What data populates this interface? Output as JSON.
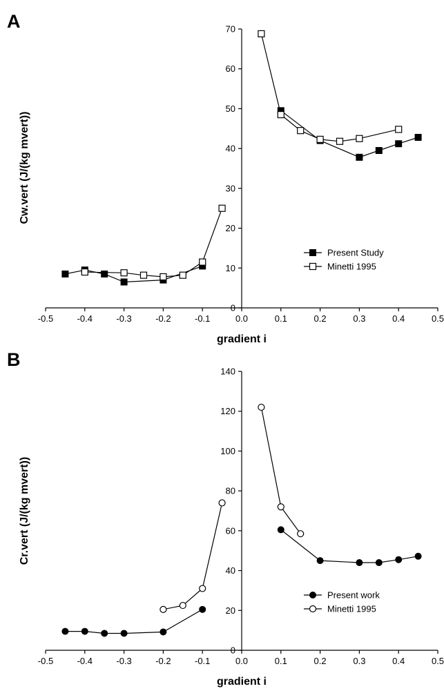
{
  "chart_data": [
    {
      "panel": "A",
      "type": "line",
      "xlabel": "gradient i",
      "ylabel": "Cw.vert (J/(kg mvert))",
      "xlim": [
        -0.5,
        0.5
      ],
      "ylim": [
        0,
        70
      ],
      "xticks": [
        -0.5,
        -0.4,
        -0.3,
        -0.2,
        -0.1,
        0.0,
        0.1,
        0.2,
        0.3,
        0.4,
        0.5
      ],
      "xtick_labels": [
        "-0.5",
        "-0.4",
        "-0.3",
        "-0.2",
        "-0.1",
        "0.0",
        "0.1",
        "0.2",
        "0.3",
        "0.4",
        "0.5"
      ],
      "yticks": [
        0,
        10,
        20,
        30,
        40,
        50,
        60,
        70
      ],
      "ytick_labels": [
        "0",
        "10",
        "20",
        "30",
        "40",
        "50",
        "60",
        "70"
      ],
      "grid": false,
      "legend_position": "bottom-right",
      "series": [
        {
          "name": "Present Study",
          "marker": "filled-square",
          "segments": [
            {
              "x": [
                -0.45,
                -0.4,
                -0.35,
                -0.3,
                -0.2,
                -0.1
              ],
              "y": [
                8.5,
                9.5,
                8.5,
                6.5,
                7.0,
                10.5
              ]
            },
            {
              "x": [
                0.1,
                0.2,
                0.3,
                0.35,
                0.4,
                0.45
              ],
              "y": [
                49.5,
                42.0,
                37.8,
                39.5,
                41.2,
                42.8
              ]
            }
          ]
        },
        {
          "name": "Minetti 1995",
          "marker": "open-square",
          "segments": [
            {
              "x": [
                -0.4,
                -0.3,
                -0.25,
                -0.2,
                -0.15,
                -0.1,
                -0.05
              ],
              "y": [
                9.0,
                8.8,
                8.2,
                7.8,
                8.2,
                11.5,
                25.0
              ]
            },
            {
              "x": [
                0.05,
                0.1,
                0.15,
                0.2,
                0.25,
                0.3,
                0.4
              ],
              "y": [
                68.8,
                48.5,
                44.5,
                42.3,
                41.8,
                42.5,
                44.8
              ]
            }
          ]
        }
      ]
    },
    {
      "panel": "B",
      "type": "line",
      "xlabel": "gradient i",
      "ylabel": "Cr.vert (J/(kg mvert))",
      "xlim": [
        -0.5,
        0.5
      ],
      "ylim": [
        0,
        140
      ],
      "xticks": [
        -0.5,
        -0.4,
        -0.3,
        -0.2,
        -0.1,
        0.0,
        0.1,
        0.2,
        0.3,
        0.4,
        0.5
      ],
      "xtick_labels": [
        "-0.5",
        "-0.4",
        "-0.3",
        "-0.2",
        "-0.1",
        "0.0",
        "0.1",
        "0.2",
        "0.3",
        "0.4",
        "0.5"
      ],
      "yticks": [
        0,
        20,
        40,
        60,
        80,
        100,
        120,
        140
      ],
      "ytick_labels": [
        "0",
        "20",
        "40",
        "60",
        "80",
        "100",
        "120",
        "140"
      ],
      "grid": false,
      "legend_position": "bottom-right",
      "series": [
        {
          "name": "Present work",
          "marker": "filled-circle",
          "segments": [
            {
              "x": [
                -0.45,
                -0.4,
                -0.35,
                -0.3,
                -0.2,
                -0.1
              ],
              "y": [
                9.5,
                9.5,
                8.5,
                8.5,
                9.2,
                20.5
              ]
            },
            {
              "x": [
                0.1,
                0.2,
                0.3,
                0.35,
                0.4,
                0.45
              ],
              "y": [
                60.5,
                45.0,
                44.0,
                44.0,
                45.5,
                47.2
              ]
            }
          ]
        },
        {
          "name": "Minetti 1995",
          "marker": "open-circle",
          "segments": [
            {
              "x": [
                -0.2,
                -0.15,
                -0.1,
                -0.05
              ],
              "y": [
                20.5,
                22.5,
                31.0,
                74.0
              ]
            },
            {
              "x": [
                0.05,
                0.1,
                0.15
              ],
              "y": [
                122.0,
                72.0,
                58.5
              ]
            }
          ]
        }
      ]
    }
  ]
}
